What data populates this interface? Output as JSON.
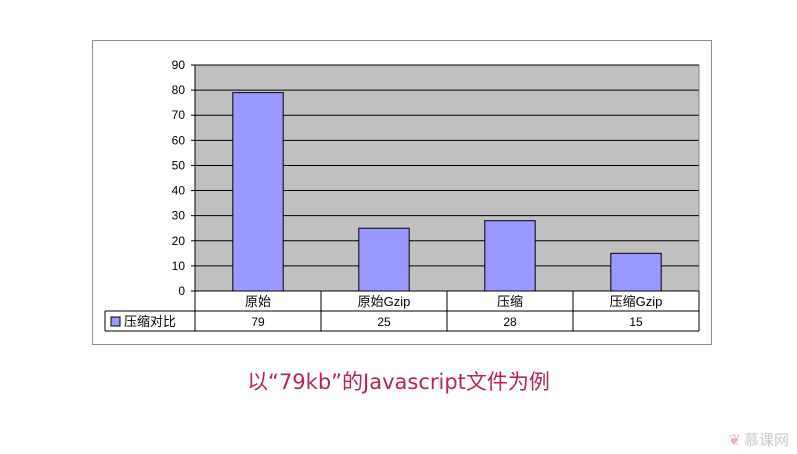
{
  "chart_data": {
    "type": "bar",
    "categories": [
      "原始",
      "原始Gzip",
      "压缩",
      "压缩Gzip"
    ],
    "series": [
      {
        "name": "压缩对比",
        "values": [
          79,
          25,
          28,
          15
        ]
      }
    ],
    "ylim": [
      0,
      90
    ],
    "yticks": [
      "0",
      "10",
      "20",
      "30",
      "40",
      "50",
      "60",
      "70",
      "80",
      "90"
    ],
    "grid": true,
    "legend": "data-table-left",
    "colors": {
      "bar": "#9999ff",
      "plot_bg": "#c0c0c0",
      "border": "#000000"
    }
  },
  "caption": "以“79kb”的Javascript文件为例",
  "watermark": "慕课网"
}
